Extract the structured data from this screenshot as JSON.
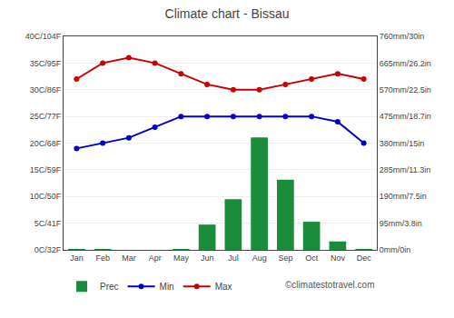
{
  "chart_data": {
    "type": "bar",
    "title": "Climate chart - Bissau",
    "categories": [
      "Jan",
      "Feb",
      "Mar",
      "Apr",
      "May",
      "Jun",
      "Jul",
      "Aug",
      "Sep",
      "Oct",
      "Nov",
      "Dec"
    ],
    "series": [
      {
        "name": "Prec",
        "type": "bar",
        "axis": "y2",
        "color": "#1a8c3c",
        "values": [
          1,
          1,
          0,
          0,
          3,
          90,
          180,
          400,
          250,
          100,
          30,
          1
        ]
      },
      {
        "name": "Min",
        "type": "line",
        "marker": "circle",
        "color": "#0000cc",
        "values": [
          19,
          20,
          21,
          23,
          25,
          25,
          25,
          25,
          25,
          25,
          24,
          20
        ]
      },
      {
        "name": "Max",
        "type": "line",
        "marker": "circle",
        "color": "#cc0000",
        "values": [
          32,
          35,
          36,
          35,
          33,
          31,
          30,
          30,
          31,
          32,
          33,
          32
        ]
      }
    ],
    "ylim": [
      0,
      40
    ],
    "yticks": [
      {
        "value": 0,
        "label": "0C/32F"
      },
      {
        "value": 5,
        "label": "5C/41F"
      },
      {
        "value": 10,
        "label": "10C/50F"
      },
      {
        "value": 15,
        "label": "15C/59F"
      },
      {
        "value": 20,
        "label": "20C/68F"
      },
      {
        "value": 25,
        "label": "25C/77F"
      },
      {
        "value": 30,
        "label": "30C/86F"
      },
      {
        "value": 35,
        "label": "35C/95F"
      },
      {
        "value": 40,
        "label": "40C/104F"
      }
    ],
    "y2lim": [
      0,
      760
    ],
    "y2ticks": [
      {
        "value": 0,
        "label": "0mm/0in"
      },
      {
        "value": 95,
        "label": "95mm/3.8in"
      },
      {
        "value": 190,
        "label": "190mm/7.5in"
      },
      {
        "value": 285,
        "label": "285mm/11.3in"
      },
      {
        "value": 380,
        "label": "380mm/15in"
      },
      {
        "value": 475,
        "label": "475mm/18.7in"
      },
      {
        "value": 570,
        "label": "570mm/22.5in"
      },
      {
        "value": 665,
        "label": "665mm/26.2in"
      },
      {
        "value": 760,
        "label": "760mm/30in"
      }
    ],
    "grid": true,
    "legend": "bottom",
    "annotations": [
      "©climatestotravel.com"
    ]
  }
}
